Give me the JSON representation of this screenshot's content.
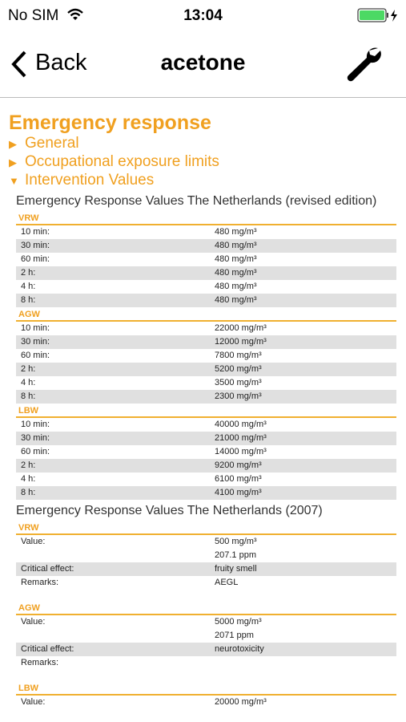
{
  "status": {
    "carrier": "No SIM",
    "time": "13:04"
  },
  "nav": {
    "back": "Back",
    "title": "acetone"
  },
  "section_title": "Emergency response",
  "toggles": [
    {
      "label": "General",
      "open": false
    },
    {
      "label": "Occupational exposure limits",
      "open": false
    },
    {
      "label": "Intervention Values",
      "open": true
    }
  ],
  "tables": [
    {
      "title": "Emergency Response Values The Netherlands (revised edition)",
      "groups": [
        {
          "name": "VRW",
          "rows": [
            {
              "label": "10 min:",
              "lines": [
                "480 mg/m³"
              ]
            },
            {
              "label": "30 min:",
              "lines": [
                "480 mg/m³"
              ]
            },
            {
              "label": "60 min:",
              "lines": [
                "480 mg/m³"
              ]
            },
            {
              "label": "2 h:",
              "lines": [
                "480 mg/m³"
              ]
            },
            {
              "label": "4 h:",
              "lines": [
                "480 mg/m³"
              ]
            },
            {
              "label": "8 h:",
              "lines": [
                "480 mg/m³"
              ]
            }
          ]
        },
        {
          "name": "AGW",
          "rows": [
            {
              "label": "10 min:",
              "lines": [
                "22000 mg/m³"
              ]
            },
            {
              "label": "30 min:",
              "lines": [
                "12000 mg/m³"
              ]
            },
            {
              "label": "60 min:",
              "lines": [
                "7800 mg/m³"
              ]
            },
            {
              "label": "2 h:",
              "lines": [
                "5200 mg/m³"
              ]
            },
            {
              "label": "4 h:",
              "lines": [
                "3500 mg/m³"
              ]
            },
            {
              "label": "8 h:",
              "lines": [
                "2300 mg/m³"
              ]
            }
          ]
        },
        {
          "name": "LBW",
          "rows": [
            {
              "label": "10 min:",
              "lines": [
                "40000 mg/m³"
              ]
            },
            {
              "label": "30 min:",
              "lines": [
                "21000 mg/m³"
              ]
            },
            {
              "label": "60 min:",
              "lines": [
                "14000 mg/m³"
              ]
            },
            {
              "label": "2 h:",
              "lines": [
                "9200 mg/m³"
              ]
            },
            {
              "label": "4 h:",
              "lines": [
                "6100 mg/m³"
              ]
            },
            {
              "label": "8 h:",
              "lines": [
                "4100 mg/m³"
              ]
            }
          ]
        }
      ]
    },
    {
      "title": "Emergency Response Values The Netherlands (2007)",
      "gap": true,
      "groups": [
        {
          "name": "VRW",
          "rows": [
            {
              "label": "Value:",
              "lines": [
                "500 mg/m³",
                "207.1 ppm"
              ]
            },
            {
              "label": "Critical effect:",
              "lines": [
                "fruity smell"
              ]
            },
            {
              "label": "Remarks:",
              "lines": [
                "AEGL"
              ]
            }
          ]
        },
        {
          "name": "AGW",
          "rows": [
            {
              "label": "Value:",
              "lines": [
                "5000 mg/m³",
                "2071 ppm"
              ]
            },
            {
              "label": "Critical effect:",
              "lines": [
                "neurotoxicity"
              ]
            },
            {
              "label": "Remarks:",
              "lines": []
            }
          ]
        },
        {
          "name": "LBW",
          "rows": [
            {
              "label": "Value:",
              "lines": [
                "20000 mg/m³"
              ]
            }
          ]
        }
      ]
    }
  ]
}
